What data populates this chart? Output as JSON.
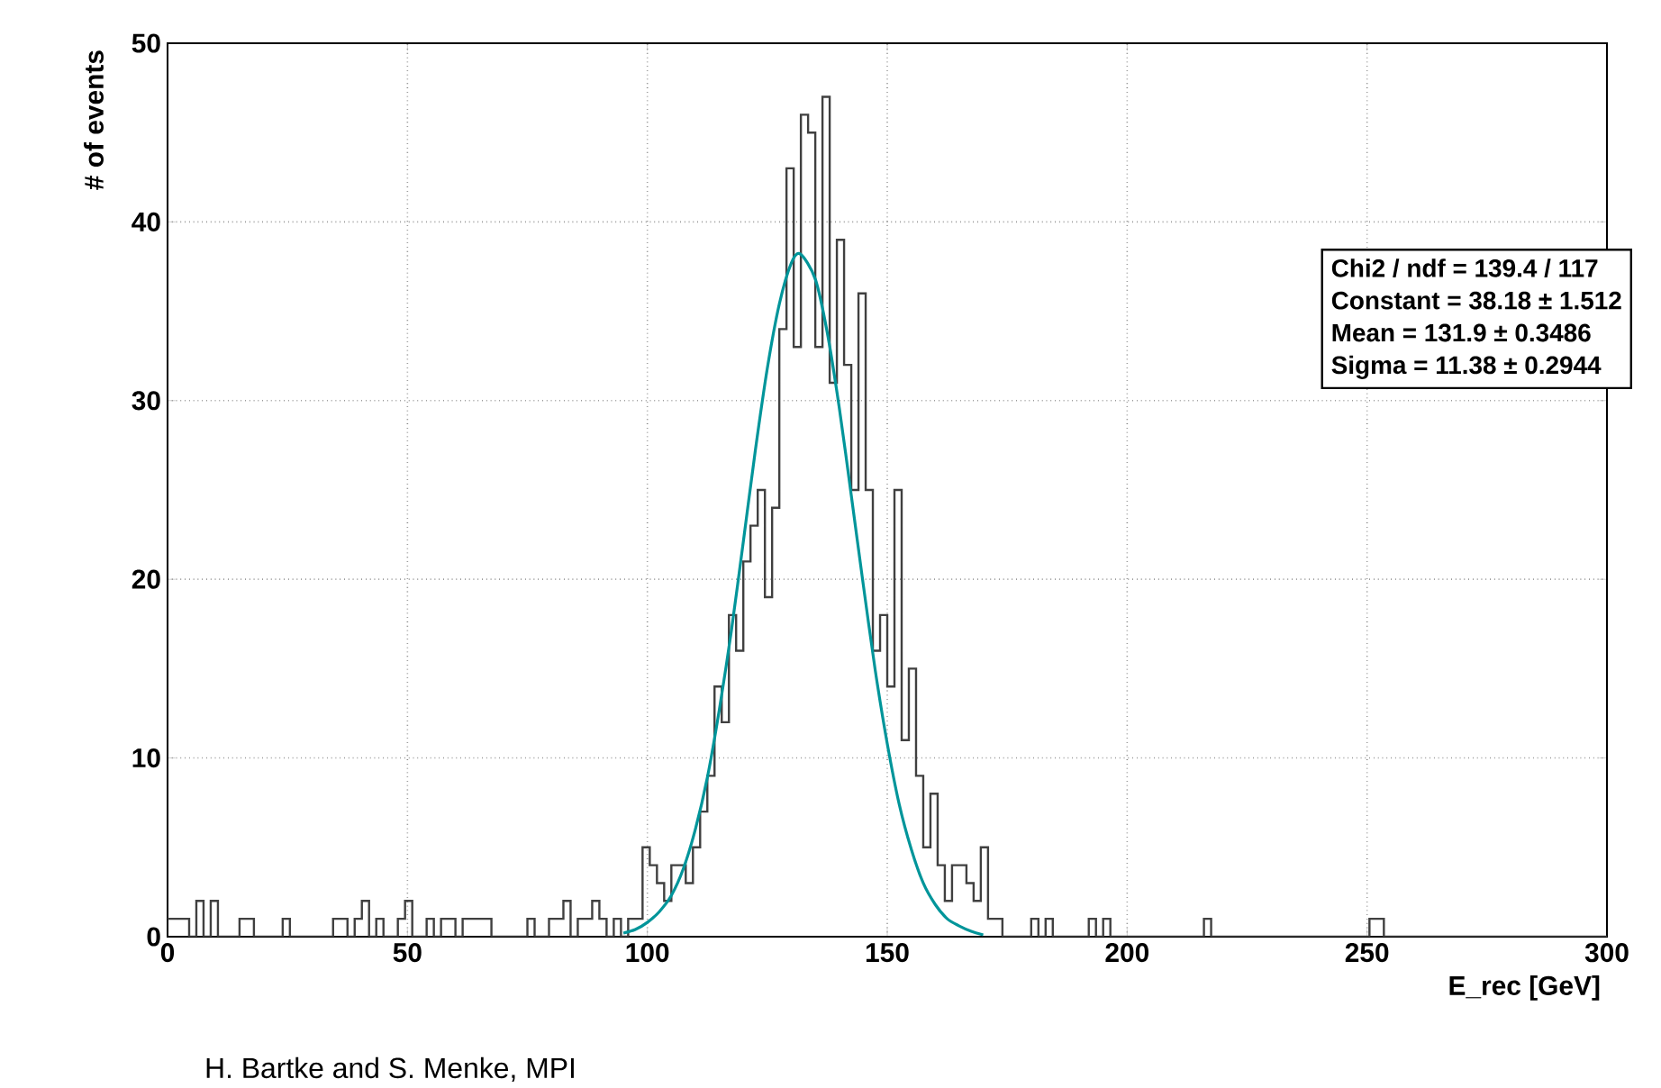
{
  "chart_data": {
    "type": "histogram",
    "xlabel": "E_rec [GeV]",
    "ylabel": "# of events",
    "bins": [
      0,
      1.5,
      3,
      4.5,
      6,
      7.5,
      9,
      10.5,
      12,
      13.5,
      15,
      16.5,
      18,
      19.5,
      21,
      22.5,
      24,
      25.5,
      27,
      28.5,
      30,
      31.5,
      33,
      34.5,
      36,
      37.5,
      39,
      40.5,
      42,
      43.5,
      45,
      46.5,
      48,
      49.5,
      51,
      52.5,
      54,
      55.5,
      57,
      58.5,
      60,
      61.5,
      63,
      64.5,
      66,
      67.5,
      69,
      70.5,
      72,
      73.5,
      75,
      76.5,
      78,
      79.5,
      81,
      82.5,
      84,
      85.5,
      87,
      88.5,
      90,
      91.5,
      93,
      94.5,
      96,
      97.5,
      99,
      100.5,
      102,
      103.5,
      105,
      106.5,
      108,
      109.5,
      111,
      112.5,
      114,
      115.5,
      117,
      118.5,
      120,
      121.5,
      123,
      124.5,
      126,
      127.5,
      129,
      130.5,
      132,
      133.5,
      135,
      136.5,
      138,
      139.5,
      141,
      142.5,
      144,
      145.5,
      147,
      148.5,
      150,
      151.5,
      153,
      154.5,
      156,
      157.5,
      159,
      160.5,
      162,
      163.5,
      165,
      166.5,
      168,
      169.5,
      171,
      172.5,
      174,
      175.5,
      177,
      178.5,
      180,
      181.5,
      183,
      184.5,
      186,
      187.5,
      189,
      190.5,
      192,
      193.5,
      195,
      196.5,
      198,
      199.5,
      201,
      202.5,
      204,
      205.5,
      207,
      208.5,
      210,
      211.5,
      213,
      214.5,
      216,
      217.5,
      219,
      220.5,
      222,
      223.5,
      225,
      226.5,
      228,
      229.5,
      231,
      232.5,
      234,
      235.5,
      237,
      238.5,
      240,
      241.5,
      243,
      244.5,
      246,
      247.5,
      249,
      250.5,
      252,
      253.5,
      255,
      256.5,
      258,
      259.5,
      261,
      262.5,
      264,
      265.5,
      267,
      268.5,
      270,
      271.5,
      273,
      274.5,
      276,
      277.5,
      279,
      280.5,
      282,
      283.5,
      285,
      286.5,
      288,
      289.5,
      291,
      292.5,
      294,
      295.5,
      297,
      298.5,
      300
    ],
    "values": [
      1,
      1,
      1,
      0,
      2,
      0,
      2,
      0,
      0,
      0,
      1,
      1,
      0,
      0,
      0,
      0,
      1,
      0,
      0,
      0,
      0,
      0,
      0,
      1,
      1,
      0,
      1,
      2,
      0,
      1,
      0,
      0,
      1,
      2,
      0,
      0,
      1,
      0,
      1,
      1,
      0,
      1,
      1,
      1,
      1,
      0,
      0,
      0,
      0,
      0,
      1,
      0,
      0,
      1,
      1,
      2,
      0,
      1,
      1,
      2,
      1,
      0,
      1,
      0,
      1,
      1,
      5,
      4,
      3,
      2,
      4,
      4,
      3,
      5,
      7,
      9,
      14,
      12,
      18,
      16,
      21,
      23,
      25,
      19,
      24,
      34,
      43,
      33,
      46,
      45,
      33,
      47,
      31,
      39,
      32,
      25,
      36,
      25,
      16,
      18,
      14,
      25,
      11,
      15,
      9,
      5,
      8,
      4,
      2,
      4,
      4,
      3,
      2,
      5,
      1,
      1,
      0,
      0,
      0,
      0,
      1,
      0,
      1,
      0,
      0,
      0,
      0,
      0,
      1,
      0,
      1,
      0,
      0,
      0,
      0,
      0,
      0,
      0,
      0,
      0,
      0,
      0,
      0,
      0,
      1,
      0,
      0,
      0,
      0,
      0,
      0,
      0,
      0,
      0,
      0,
      0,
      0,
      0,
      0,
      0,
      0,
      0,
      0,
      0,
      0,
      0,
      0,
      1,
      1,
      0,
      0,
      0,
      0,
      0,
      0,
      0,
      0,
      0,
      0,
      0,
      0,
      0,
      0,
      0,
      0,
      0,
      0,
      0,
      0,
      0,
      0,
      0,
      0,
      0,
      0,
      0,
      0,
      0,
      0,
      0
    ],
    "color": "#404040",
    "series": [
      {
        "type": "line",
        "color": "#00959a",
        "x": [
          95,
          97.5,
          100,
          102.5,
          105,
          107.5,
          110,
          112.5,
          115,
          117.5,
          120,
          122.5,
          125,
          127.5,
          130,
          131.9,
          135,
          137.5,
          140,
          142.5,
          145,
          147.5,
          150,
          152.5,
          155,
          157.5,
          160,
          162.5,
          165,
          167.5,
          170
        ],
        "values": [
          0.2,
          0.4,
          0.8,
          1.4,
          2.3,
          3.8,
          6.0,
          8.9,
          12.7,
          17.1,
          22.1,
          27.2,
          31.8,
          35.4,
          37.7,
          38.2,
          36.8,
          33.8,
          29.6,
          24.7,
          19.7,
          14.9,
          10.8,
          7.4,
          4.9,
          3.0,
          1.8,
          1.0,
          0.6,
          0.3,
          0.1
        ]
      }
    ],
    "xlim": [
      0,
      300
    ],
    "ylim": [
      0,
      50
    ],
    "xticks": [
      0,
      50,
      100,
      150,
      200,
      250,
      300
    ],
    "yticks": [
      0,
      10,
      20,
      30,
      40,
      50
    ],
    "grid": true,
    "annotations": [
      "Chi2 / ndf = 139.4 / 117",
      "Constant = 38.18 ± 1.512",
      "Mean      = 131.9 ± 0.3486",
      "Sigma    = 11.38 ± 0.2944",
      "H. Bartke and S. Menke, MPI"
    ]
  }
}
